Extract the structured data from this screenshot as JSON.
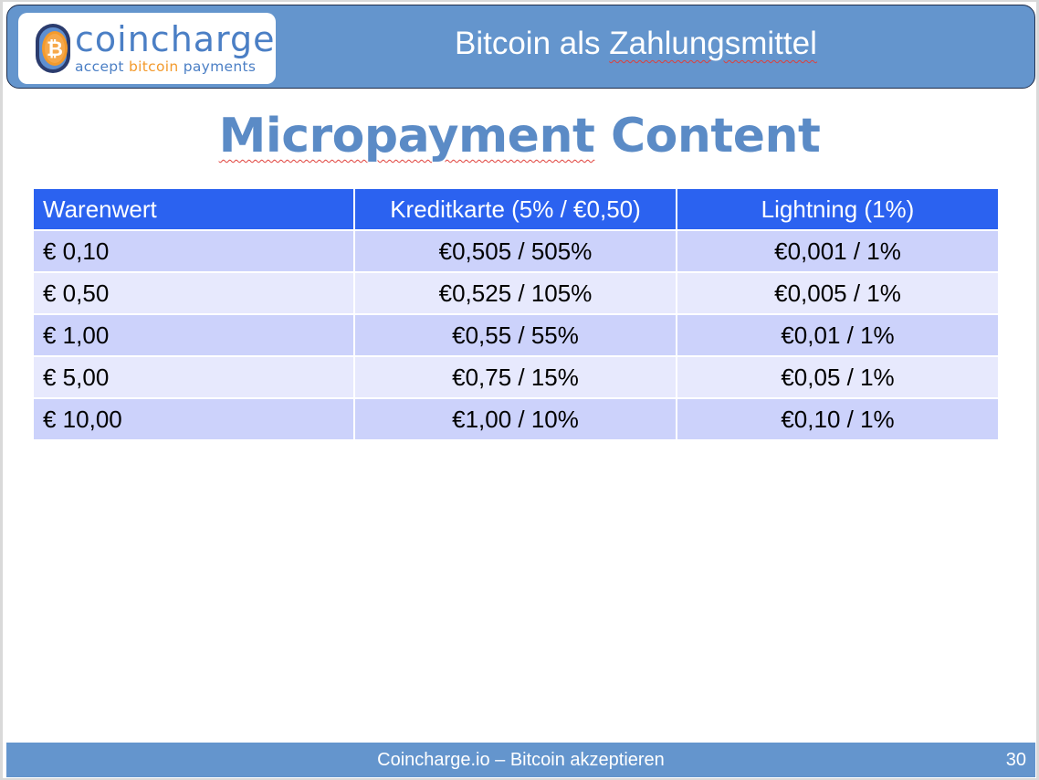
{
  "header": {
    "logo": {
      "name_part1": "coin",
      "name_part2": "charge",
      "tagline_part1": "accept",
      "tagline_part2": "bitcoin",
      "tagline_part3": "payments"
    },
    "title_part1": "Bitcoin als",
    "title_part2": "Zahlungsmittel"
  },
  "slide_title_part1": "Micropayment",
  "slide_title_part2": "Content",
  "table": {
    "headers": [
      "Warenwert",
      "Kreditkarte (5% / €0,50)",
      "Lightning (1%)"
    ],
    "rows": [
      [
        "€ 0,10",
        "€0,505 / 505%",
        "€0,001 / 1%"
      ],
      [
        "€ 0,50",
        "€0,525 / 105%",
        "€0,005 / 1%"
      ],
      [
        "€ 1,00",
        "€0,55 / 55%",
        "€0,01 / 1%"
      ],
      [
        "€ 5,00",
        "€0,75 / 15%",
        "€0,05 / 1%"
      ],
      [
        "€ 10,00",
        "€1,00 / 10%",
        "€0,10 / 1%"
      ]
    ]
  },
  "footer": {
    "text": "Coincharge.io – Bitcoin akzeptieren",
    "page_number": "30"
  },
  "colors": {
    "header_bg": "#6495cd",
    "table_header_bg": "#2b62f0",
    "row_dark": "#ccd2fb",
    "row_light": "#e7e9fd",
    "title_color": "#5b8bc6",
    "logo_blue": "#4b7fc5",
    "logo_orange": "#f39a2c"
  }
}
